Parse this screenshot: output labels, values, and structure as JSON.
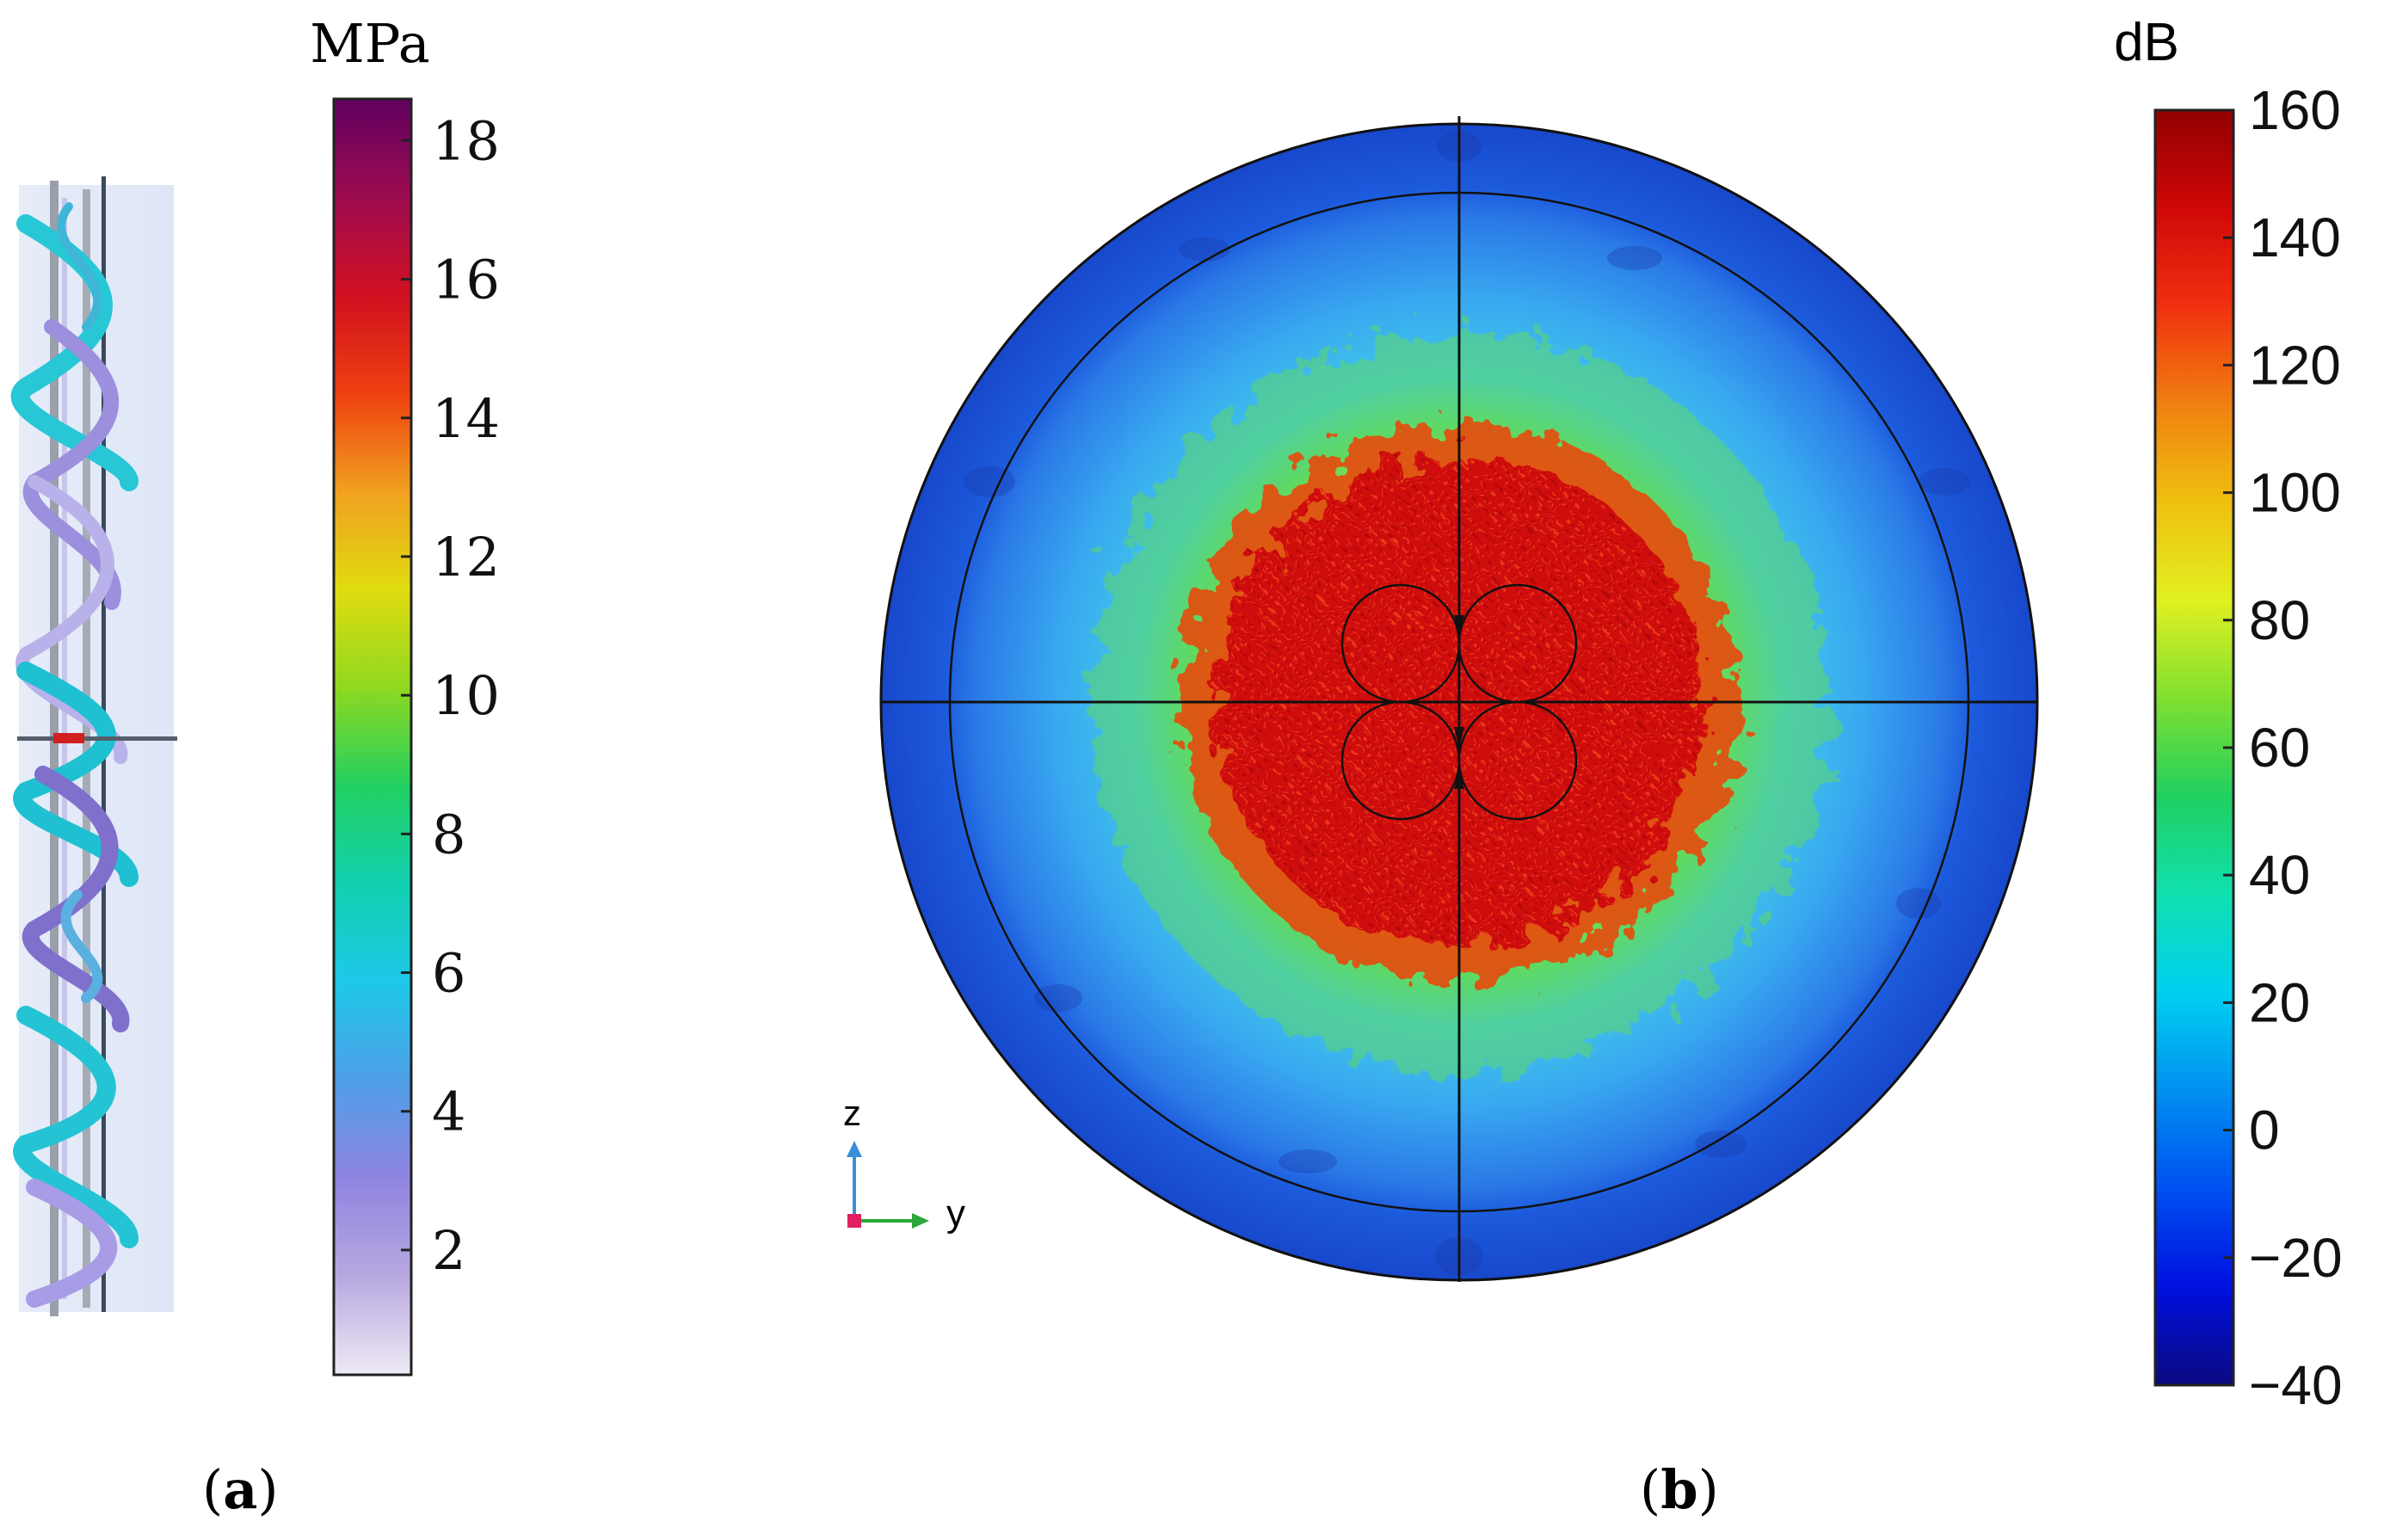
{
  "panel_a": {
    "label_open": "(",
    "label_letter": "a",
    "label_close": ")",
    "colorbar": {
      "unit": "MPa",
      "ticks": [
        "18",
        "16",
        "14",
        "12",
        "10",
        "8",
        "6",
        "4",
        "2"
      ],
      "min": 0.2,
      "max": 18.6,
      "colors": [
        "#eeeaf5",
        "#b8a8e0",
        "#8f84e0",
        "#4f9ee8",
        "#1ec8e8",
        "#12d0b0",
        "#22d060",
        "#8fd820",
        "#e0dc10",
        "#f0a020",
        "#ee4010",
        "#d01020",
        "#9c0c50",
        "#600060"
      ]
    }
  },
  "panel_b": {
    "label_open": "(",
    "label_letter": "b",
    "label_close": ")",
    "axes": {
      "z": "z",
      "y": "y"
    },
    "colorbar": {
      "unit": "dB",
      "ticks": [
        "160",
        "140",
        "120",
        "100",
        "80",
        "60",
        "40",
        "20",
        "0",
        "−20",
        "−40"
      ],
      "min": -40,
      "max": 160,
      "colors": [
        "#0a0a80",
        "#0010e0",
        "#0050f0",
        "#0090f0",
        "#00d0f0",
        "#10e0b0",
        "#20d060",
        "#80e030",
        "#e0f020",
        "#f0c010",
        "#f08010",
        "#f03010",
        "#d00808",
        "#900000"
      ]
    }
  }
}
